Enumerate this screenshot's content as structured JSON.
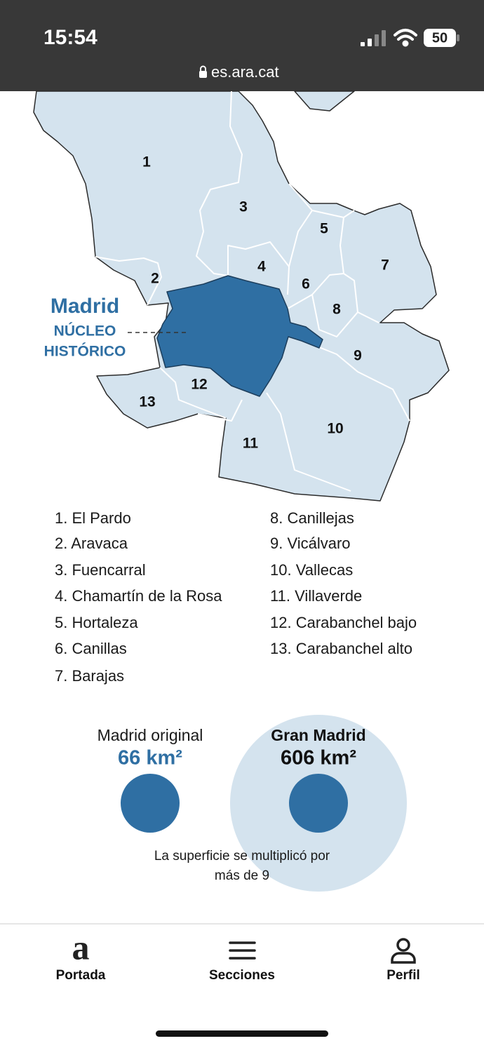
{
  "status_bar": {
    "time": "15:54",
    "battery": "50",
    "url": "es.ara.cat"
  },
  "map": {
    "districts": [
      "1",
      "2",
      "3",
      "4",
      "5",
      "6",
      "7",
      "8",
      "9",
      "10",
      "11",
      "12",
      "13"
    ],
    "center_name": "Madrid",
    "center_label": [
      "NÚCLEO",
      "HISTÓRICO"
    ]
  },
  "legend": {
    "items": [
      "1. El Pardo",
      "2. Aravaca",
      "3. Fuencarral",
      "4. Chamartín de la Rosa",
      "5. Hortaleza",
      "6. Canillas",
      "7. Barajas",
      "8. Canillejas",
      "9. Vicálvaro",
      "10. Vallecas",
      "11. Villaverde",
      "12. Carabanchel bajo",
      "13. Carabanchel alto"
    ]
  },
  "comparison": {
    "original_title": "Madrid original",
    "original_area": "66 km²",
    "gran_title": "Gran Madrid",
    "gran_area": "606 km²",
    "note": [
      "La superficie se multiplicó por",
      "más de 9"
    ]
  },
  "nav": {
    "logo": "a",
    "items": [
      "Portada",
      "Secciones",
      "Perfil"
    ]
  }
}
